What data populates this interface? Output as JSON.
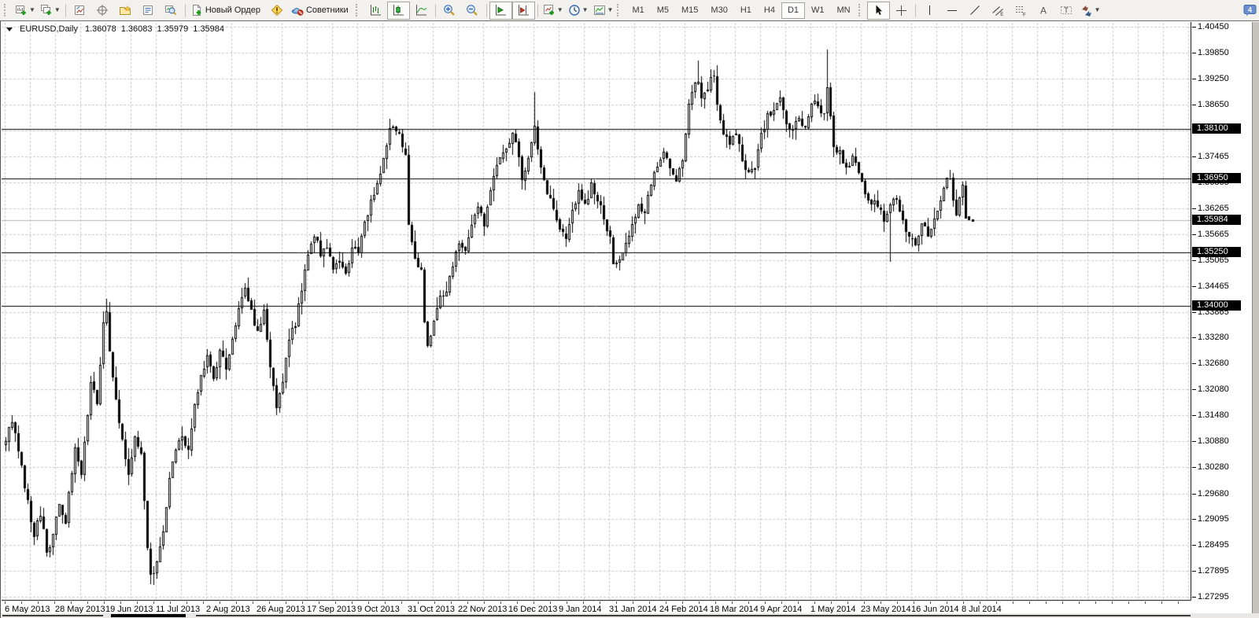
{
  "toolbar": {
    "new_order_label": "Новый Ордер",
    "advisors_label": "Советники",
    "timeframes": [
      "M1",
      "M5",
      "M15",
      "M30",
      "H1",
      "H4",
      "D1",
      "W1",
      "MN"
    ],
    "active_timeframe": "D1",
    "active_chart_type": "candlestick",
    "mql_badge": "4",
    "icon_letters": {
      "channel": "E",
      "fibonacci": "F",
      "text": "A",
      "label": "T"
    },
    "icons": [
      "new-chart",
      "profiles",
      "market-watch",
      "data-window",
      "navigator",
      "terminal",
      "strategy-tester",
      "new-order",
      "metaeditor",
      "expert-advisors",
      "bar-chart",
      "candlestick-chart",
      "line-chart",
      "zoom-in",
      "zoom-out",
      "auto-scroll",
      "chart-shift",
      "indicators",
      "periods",
      "templates",
      "cursor",
      "crosshair",
      "vertical-line",
      "horizontal-line",
      "trendline",
      "equidistant-channel",
      "fibonacci",
      "text",
      "text-label",
      "arrows",
      "mql-community"
    ]
  },
  "chart_header": {
    "symbol_period": "EURUSD,Daily",
    "open": "1.36078",
    "high": "1.36083",
    "low": "1.35979",
    "close": "1.35984"
  },
  "chart_data": {
    "type": "candlestick",
    "title": "EURUSD,Daily",
    "current_price": 1.35984,
    "level_lines": [
      1.381,
      1.3695,
      1.3525,
      1.34
    ],
    "candle_count": 307,
    "x_label_step_candles": 16,
    "x_labels": [
      "6 May 2013",
      "28 May 2013",
      "19 Jun 2013",
      "11 Jul 2013",
      "2 Aug 2013",
      "26 Aug 2013",
      "17 Sep 2013",
      "9 Oct 2013",
      "31 Oct 2013",
      "22 Nov 2013",
      "16 Dec 2013",
      "9 Jan 2014",
      "31 Jan 2014",
      "24 Feb 2014",
      "18 Mar 2014",
      "9 Apr 2014",
      "1 May 2014",
      "23 May 2014",
      "16 Jun 2014",
      "8 Jul 2014"
    ],
    "y_axis": {
      "top_price": 1.4045,
      "bottom_price": 1.27295,
      "tick_labels": [
        "1.40450",
        "1.39850",
        "1.39250",
        "1.38650",
        "1.37465",
        "1.36865",
        "1.36265",
        "1.35665",
        "1.35065",
        "1.34465",
        "1.33865",
        "1.33280",
        "1.32680",
        "1.32080",
        "1.31480",
        "1.30880",
        "1.30280",
        "1.29680",
        "1.29095",
        "1.28495",
        "1.27895",
        "1.27295"
      ],
      "highlighted_labels": [
        "1.38100",
        "1.36950",
        "1.35984",
        "1.35250",
        "1.34000"
      ]
    },
    "grid_prices": [
      1.4045,
      1.3985,
      1.3925,
      1.3865,
      1.3805,
      1.37465,
      1.36865,
      1.36265,
      1.35665,
      1.35065,
      1.34465,
      1.33865,
      1.3328,
      1.3268,
      1.3208,
      1.3148,
      1.3088,
      1.3028,
      1.2968,
      1.29095,
      1.28495,
      1.27895,
      1.27295
    ],
    "price_path_anchors": [
      [
        0,
        1.3085
      ],
      [
        2,
        1.314
      ],
      [
        4,
        1.3065
      ],
      [
        6,
        1.2985
      ],
      [
        9,
        1.287
      ],
      [
        11,
        1.2925
      ],
      [
        13,
        1.2835
      ],
      [
        15,
        1.2872
      ],
      [
        17,
        1.2942
      ],
      [
        19,
        1.2905
      ],
      [
        22,
        1.3078
      ],
      [
        24,
        1.3012
      ],
      [
        27,
        1.3222
      ],
      [
        29,
        1.3182
      ],
      [
        31,
        1.3355
      ],
      [
        32,
        1.3395
      ],
      [
        33,
        1.329
      ],
      [
        35,
        1.3185
      ],
      [
        37,
        1.3088
      ],
      [
        39,
        1.3015
      ],
      [
        41,
        1.3098
      ],
      [
        43,
        1.3055
      ],
      [
        45,
        1.2842
      ],
      [
        46,
        1.2772
      ],
      [
        48,
        1.2812
      ],
      [
        50,
        1.2882
      ],
      [
        52,
        1.3002
      ],
      [
        54,
        1.3072
      ],
      [
        56,
        1.3108
      ],
      [
        58,
        1.3062
      ],
      [
        60,
        1.3175
      ],
      [
        62,
        1.3232
      ],
      [
        64,
        1.3285
      ],
      [
        66,
        1.3232
      ],
      [
        68,
        1.3302
      ],
      [
        70,
        1.3258
      ],
      [
        72,
        1.3322
      ],
      [
        74,
        1.3392
      ],
      [
        76,
        1.3448
      ],
      [
        78,
        1.3388
      ],
      [
        80,
        1.3342
      ],
      [
        82,
        1.3388
      ],
      [
        84,
        1.3252
      ],
      [
        86,
        1.3168
      ],
      [
        88,
        1.3222
      ],
      [
        90,
        1.3322
      ],
      [
        92,
        1.3362
      ],
      [
        94,
        1.3442
      ],
      [
        96,
        1.3528
      ],
      [
        98,
        1.3568
      ],
      [
        100,
        1.3522
      ],
      [
        102,
        1.3542
      ],
      [
        104,
        1.3482
      ],
      [
        106,
        1.3508
      ],
      [
        108,
        1.3472
      ],
      [
        110,
        1.3532
      ],
      [
        112,
        1.3528
      ],
      [
        114,
        1.3592
      ],
      [
        116,
        1.3642
      ],
      [
        118,
        1.3682
      ],
      [
        120,
        1.3745
      ],
      [
        122,
        1.3808
      ],
      [
        123,
        1.3818
      ],
      [
        125,
        1.3792
      ],
      [
        127,
        1.3748
      ],
      [
        128,
        1.3588
      ],
      [
        130,
        1.3508
      ],
      [
        132,
        1.3482
      ],
      [
        133,
        1.3368
      ],
      [
        134,
        1.3302
      ],
      [
        136,
        1.3372
      ],
      [
        138,
        1.3422
      ],
      [
        140,
        1.3442
      ],
      [
        142,
        1.3492
      ],
      [
        144,
        1.3548
      ],
      [
        146,
        1.3522
      ],
      [
        148,
        1.3592
      ],
      [
        150,
        1.3622
      ],
      [
        152,
        1.3592
      ],
      [
        154,
        1.3662
      ],
      [
        156,
        1.3722
      ],
      [
        158,
        1.3762
      ],
      [
        160,
        1.3782
      ],
      [
        161,
        1.3808
      ],
      [
        163,
        1.3748
      ],
      [
        164,
        1.3688
      ],
      [
        166,
        1.3742
      ],
      [
        168,
        1.3818
      ],
      [
        170,
        1.3722
      ],
      [
        172,
        1.3662
      ],
      [
        174,
        1.3622
      ],
      [
        176,
        1.3582
      ],
      [
        178,
        1.3552
      ],
      [
        180,
        1.3622
      ],
      [
        182,
        1.3662
      ],
      [
        184,
        1.3628
      ],
      [
        186,
        1.3682
      ],
      [
        188,
        1.3652
      ],
      [
        190,
        1.3608
      ],
      [
        192,
        1.3552
      ],
      [
        193,
        1.3492
      ],
      [
        195,
        1.3508
      ],
      [
        197,
        1.3538
      ],
      [
        199,
        1.3588
      ],
      [
        201,
        1.3632
      ],
      [
        203,
        1.3622
      ],
      [
        205,
        1.3688
      ],
      [
        207,
        1.3722
      ],
      [
        209,
        1.3748
      ],
      [
        211,
        1.3722
      ],
      [
        213,
        1.3688
      ],
      [
        215,
        1.3742
      ],
      [
        217,
        1.3872
      ],
      [
        219,
        1.3908
      ],
      [
        220,
        1.3922
      ],
      [
        221,
        1.3872
      ],
      [
        223,
        1.3908
      ],
      [
        225,
        1.3932
      ],
      [
        226,
        1.3872
      ],
      [
        228,
        1.3802
      ],
      [
        230,
        1.3778
      ],
      [
        232,
        1.3792
      ],
      [
        234,
        1.3742
      ],
      [
        236,
        1.3702
      ],
      [
        238,
        1.3722
      ],
      [
        240,
        1.3792
      ],
      [
        242,
        1.3838
      ],
      [
        244,
        1.3858
      ],
      [
        246,
        1.3888
      ],
      [
        248,
        1.3822
      ],
      [
        250,
        1.3808
      ],
      [
        252,
        1.3832
      ],
      [
        254,
        1.3812
      ],
      [
        256,
        1.3872
      ],
      [
        258,
        1.3858
      ],
      [
        260,
        1.3842
      ],
      [
        261,
        1.3912
      ],
      [
        262,
        1.3842
      ],
      [
        263,
        1.3762
      ],
      [
        265,
        1.3758
      ],
      [
        267,
        1.3712
      ],
      [
        269,
        1.3742
      ],
      [
        271,
        1.3708
      ],
      [
        273,
        1.3652
      ],
      [
        275,
        1.3642
      ],
      [
        277,
        1.3632
      ],
      [
        279,
        1.3602
      ],
      [
        281,
        1.3642
      ],
      [
        283,
        1.3648
      ],
      [
        285,
        1.3602
      ],
      [
        287,
        1.3552
      ],
      [
        289,
        1.3548
      ],
      [
        291,
        1.3592
      ],
      [
        293,
        1.3562
      ],
      [
        295,
        1.3602
      ],
      [
        297,
        1.3642
      ],
      [
        299,
        1.3692
      ],
      [
        300,
        1.3688
      ],
      [
        302,
        1.3618
      ],
      [
        304,
        1.3675
      ],
      [
        305,
        1.3608
      ],
      [
        306,
        1.35984
      ]
    ],
    "special_candles": {
      "32": {
        "high": 1.3417
      },
      "46": {
        "low": 1.2758
      },
      "122": {
        "high": 1.3832
      },
      "168": {
        "high": 1.3894
      },
      "220": {
        "high": 1.3967
      },
      "261": {
        "high": 1.3993
      },
      "281": {
        "low": 1.3503
      },
      "306": {
        "open": 1.36078,
        "high": 1.36083,
        "low": 1.35979,
        "close": 1.35984
      }
    },
    "colors": {
      "grid": "#c7c7c7",
      "bull": "#ffffff",
      "bear": "#000000",
      "outline": "#000000",
      "level_line": "#000000",
      "price_line": "#b3b3b3",
      "label_bg": "#000000",
      "label_fg": "#ffffff"
    }
  }
}
